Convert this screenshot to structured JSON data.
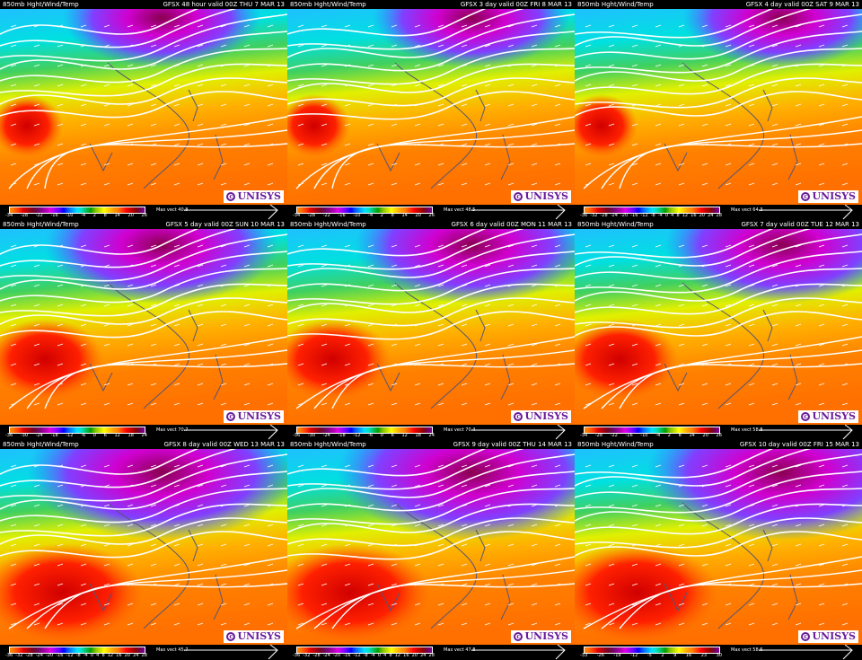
{
  "title": "850mb Hght/Wind/Temp",
  "logo": "UNISYS",
  "colors": {
    "background": "#000000",
    "contour": "#ffffff",
    "coast": "#555577",
    "logo": "#6a1b9a"
  },
  "colorbar_colors": [
    "#ff8c00",
    "#ff6a00",
    "#ff3300",
    "#e00000",
    "#b00010",
    "#800020",
    "#6a0a50",
    "#8a008a",
    "#b000b0",
    "#e000e0",
    "#a000ff",
    "#6000ff",
    "#0000ff",
    "#0060ff",
    "#00a0ff",
    "#00e0ff",
    "#00e0c0",
    "#00c060",
    "#00a000",
    "#80c000",
    "#c0e000",
    "#ffff00",
    "#ffd000",
    "#ffa000",
    "#ff8000",
    "#ff4000",
    "#ff0000",
    "#c00000",
    "#900000",
    "#700050",
    "#8000a0"
  ],
  "panels": [
    {
      "title": "850mb Hght/Wind/Temp",
      "valid": "GFSX 48 hour valid 00Z THU  7 MAR 13",
      "max_vect": "Max vect 40.8",
      "ticks": [
        "-34",
        "-28",
        "-22",
        "-16",
        "-10",
        "-4",
        "2",
        "8",
        "14",
        "20",
        "26"
      ]
    },
    {
      "title": "850mb Hght/Wind/Temp",
      "valid": "GFSX 3 day valid 00Z FRI  8 MAR 13",
      "max_vect": "Max vect 48.5",
      "ticks": [
        "-34",
        "-28",
        "-22",
        "-16",
        "-10",
        "-4",
        "2",
        "8",
        "14",
        "20",
        "26"
      ]
    },
    {
      "title": "850mb Hght/Wind/Temp",
      "valid": "GFSX 4 day valid 00Z SAT  9 MAR 13",
      "max_vect": "Max vect 64.3",
      "ticks": [
        "-36",
        "-32",
        "-28",
        "-24",
        "-20",
        "-16",
        "-12",
        "-8",
        "-4",
        "0",
        "4",
        "8",
        "12",
        "16",
        "20",
        "24",
        "28"
      ]
    },
    {
      "title": "850mb Hght/Wind/Temp",
      "valid": "GFSX 5 day valid 00Z SUN 10 MAR 13",
      "max_vect": "Max vect 70.7",
      "ticks": [
        "-36",
        "-30",
        "-24",
        "-18",
        "-12",
        "-6",
        "0",
        "6",
        "12",
        "18",
        "24"
      ]
    },
    {
      "title": "850mb Hght/Wind/Temp",
      "valid": "GFSX 6 day valid 00Z MON 11 MAR 13",
      "max_vect": "Max vect 70.4",
      "ticks": [
        "-36",
        "-30",
        "-24",
        "-18",
        "-12",
        "-6",
        "0",
        "6",
        "12",
        "18",
        "24"
      ]
    },
    {
      "title": "850mb Hght/Wind/Temp",
      "valid": "GFSX 7 day valid 00Z TUE 12 MAR 13",
      "max_vect": "Max vect 58.8",
      "ticks": [
        "-34",
        "-28",
        "-22",
        "-16",
        "-10",
        "-4",
        "2",
        "8",
        "14",
        "20",
        "26"
      ]
    },
    {
      "title": "850mb Hght/Wind/Temp",
      "valid": "GFSX 8 day valid 00Z WED 13 MAR 13",
      "max_vect": "Max vect 45.7",
      "ticks": [
        "-36",
        "-32",
        "-28",
        "-24",
        "-20",
        "-16",
        "-12",
        "-8",
        "-4",
        "0",
        "4",
        "8",
        "12",
        "16",
        "20",
        "24",
        "28"
      ]
    },
    {
      "title": "850mb Hght/Wind/Temp",
      "valid": "GFSX 9 day valid 00Z THU 14 MAR 13",
      "max_vect": "Max vect 47.8",
      "ticks": [
        "-36",
        "-32",
        "-28",
        "-24",
        "-20",
        "-16",
        "-12",
        "-8",
        "-4",
        "0",
        "4",
        "8",
        "12",
        "16",
        "20",
        "24",
        "28"
      ]
    },
    {
      "title": "850mb Hght/Wind/Temp",
      "valid": "GFSX 10 day valid 00Z FRI 15 MAR 13",
      "max_vect": "Max vect 58.6",
      "ticks": [
        "-33",
        "-26",
        "-19",
        "-12",
        "-5",
        "2",
        "9",
        "16",
        "23",
        "30"
      ]
    }
  ]
}
